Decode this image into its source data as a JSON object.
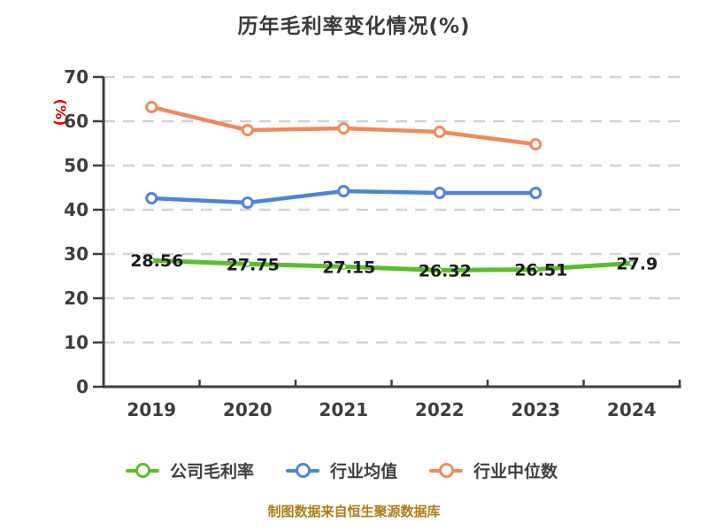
{
  "title": "历年毛利率变化情况(%)",
  "footer": "制图数据来自恒生聚源数据库",
  "colors": {
    "title_text": "#3a3a3a",
    "axis_text": "#3d3d3d",
    "axis_line": "#3d3d3d",
    "grid_line": "#d2d2d2",
    "y_unit_label": "#e60000",
    "footer_text": "#b17c15",
    "point_label": "#1b1b1b",
    "series_company": "#5abe29",
    "series_industry_avg": "#4e83db",
    "series_industry_median": "#f08a5c"
  },
  "chart_data": {
    "type": "line",
    "title": "历年毛利率变化情况(%)",
    "ylabel": "(%)",
    "xlabel": "",
    "categories": [
      "2019",
      "2020",
      "2021",
      "2022",
      "2023",
      "2024"
    ],
    "series": [
      {
        "key": "company",
        "name": "公司毛利率",
        "color": "#5abe29",
        "values": [
          28.56,
          27.75,
          27.15,
          26.32,
          26.51,
          27.9
        ],
        "show_point_labels": true
      },
      {
        "key": "industry-avg",
        "name": "行业均值",
        "color": "#4e83db",
        "values": [
          42.6,
          41.6,
          44.2,
          43.8,
          43.8
        ],
        "show_point_labels": false
      },
      {
        "key": "industry-median",
        "name": "行业中位数",
        "color": "#f08a5c",
        "values": [
          63.2,
          58.0,
          58.4,
          57.6,
          54.8
        ],
        "show_point_labels": false
      }
    ],
    "ylim": [
      0,
      70
    ],
    "y_ticks": [
      0,
      10,
      20,
      30,
      40,
      50,
      60,
      70
    ],
    "grid": "horizontal-dashed",
    "legend_position": "bottom"
  }
}
